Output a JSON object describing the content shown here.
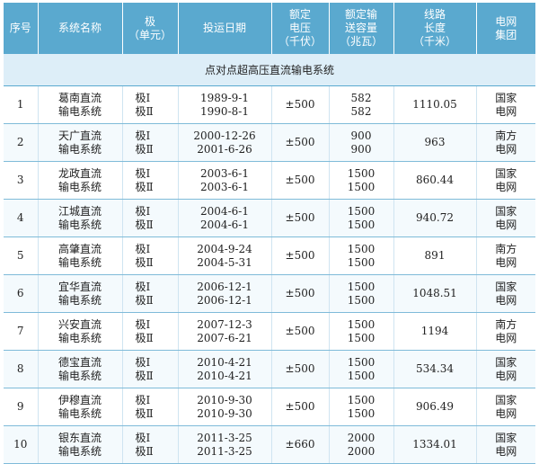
{
  "header": {
    "col_no": "序号",
    "col_name": "系统名称",
    "col_pole": [
      "极",
      "（单元）"
    ],
    "col_date": "投运日期",
    "col_voltage": [
      "额定",
      "电压",
      "（千伏）"
    ],
    "col_capacity": [
      "额定输",
      "送容量",
      "（兆瓦）"
    ],
    "col_length": [
      "线路",
      "长度",
      "（千米）"
    ],
    "col_grid": [
      "电网",
      "集团"
    ]
  },
  "section_title": "点对点超高压直流输电系统",
  "rows": [
    {
      "no": "1",
      "name": [
        "葛南直流",
        "输电系统"
      ],
      "poles": [
        "极Ⅰ",
        "极Ⅱ"
      ],
      "dates": [
        "1989-9-1",
        "1990-8-1"
      ],
      "voltage": "±500",
      "capacity": [
        "582",
        "582"
      ],
      "length": "1110.05",
      "grid": [
        "国家",
        "电网"
      ]
    },
    {
      "no": "2",
      "name": [
        "天广直流",
        "输电系统"
      ],
      "poles": [
        "极Ⅰ",
        "极Ⅱ"
      ],
      "dates": [
        "2000-12-26",
        "2001-6-26"
      ],
      "voltage": "±500",
      "capacity": [
        "900",
        "900"
      ],
      "length": "963",
      "grid": [
        "南方",
        "电网"
      ]
    },
    {
      "no": "3",
      "name": [
        "龙政直流",
        "输电系统"
      ],
      "poles": [
        "极Ⅰ",
        "极Ⅱ"
      ],
      "dates": [
        "2003-6-1",
        "2003-6-1"
      ],
      "voltage": "±500",
      "capacity": [
        "1500",
        "1500"
      ],
      "length": "860.44",
      "grid": [
        "国家",
        "电网"
      ]
    },
    {
      "no": "4",
      "name": [
        "江城直流",
        "输电系统"
      ],
      "poles": [
        "极Ⅰ",
        "极Ⅱ"
      ],
      "dates": [
        "2004-6-1",
        "2004-6-1"
      ],
      "voltage": "±500",
      "capacity": [
        "1500",
        "1500"
      ],
      "length": "940.72",
      "grid": [
        "国家",
        "电网"
      ]
    },
    {
      "no": "5",
      "name": [
        "高肇直流",
        "输电系统"
      ],
      "poles": [
        "极Ⅰ",
        "极Ⅱ"
      ],
      "dates": [
        "2004-9-24",
        "2004-5-31"
      ],
      "voltage": "±500",
      "capacity": [
        "1500",
        "1500"
      ],
      "length": "891",
      "grid": [
        "南方",
        "电网"
      ]
    },
    {
      "no": "6",
      "name": [
        "宜华直流",
        "输电系统"
      ],
      "poles": [
        "极Ⅰ",
        "极Ⅱ"
      ],
      "dates": [
        "2006-12-1",
        "2006-12-1"
      ],
      "voltage": "±500",
      "capacity": [
        "1500",
        "1500"
      ],
      "length": "1048.51",
      "grid": [
        "国家",
        "电网"
      ]
    },
    {
      "no": "7",
      "name": [
        "兴安直流",
        "输电系统"
      ],
      "poles": [
        "极Ⅰ",
        "极Ⅱ"
      ],
      "dates": [
        "2007-12-3",
        "2007-6-21"
      ],
      "voltage": "±500",
      "capacity": [
        "1500",
        "1500"
      ],
      "length": "1194",
      "grid": [
        "南方",
        "电网"
      ]
    },
    {
      "no": "8",
      "name": [
        "德宝直流",
        "输电系统"
      ],
      "poles": [
        "极Ⅰ",
        "极Ⅱ"
      ],
      "dates": [
        "2010-4-21",
        "2010-4-21"
      ],
      "voltage": "±500",
      "capacity": [
        "1500",
        "1500"
      ],
      "length": "534.34",
      "grid": [
        "国家",
        "电网"
      ]
    },
    {
      "no": "9",
      "name": [
        "伊穆直流",
        "输电系统"
      ],
      "poles": [
        "极Ⅰ",
        "极Ⅱ"
      ],
      "dates": [
        "2010-9-30",
        "2010-9-30"
      ],
      "voltage": "±500",
      "capacity": [
        "1500",
        "1500"
      ],
      "length": "906.49",
      "grid": [
        "国家",
        "电网"
      ]
    },
    {
      "no": "10",
      "name": [
        "银东直流",
        "输电系统"
      ],
      "poles": [
        "极Ⅰ",
        "极Ⅱ"
      ],
      "dates": [
        "2011-3-25",
        "2011-3-25"
      ],
      "voltage": "±660",
      "capacity": [
        "2000",
        "2000"
      ],
      "length": "1334.01",
      "grid": [
        "国家",
        "电网"
      ]
    }
  ],
  "colors": {
    "header_bg": "#5AA9CF",
    "section_bg": "#DDEEF8",
    "row_border": "#7FBBD9"
  }
}
